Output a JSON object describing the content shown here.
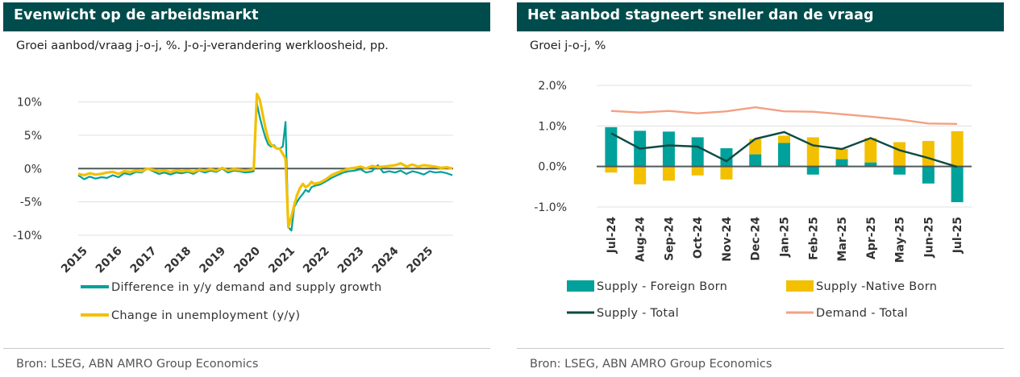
{
  "left": {
    "title": "Evenwicht op de arbeidsmarkt",
    "subtitle": "Groei aanbod/vraag j-o-j, %. J-o-j-verandering werkloosheid, pp.",
    "source": "Bron: LSEG, ABN AMRO Group Economics"
  },
  "right": {
    "title": "Het aanbod stagneert sneller dan de vraag",
    "subtitle": "Groei j-o-j, %",
    "source": "Bron: LSEG, ABN AMRO Group Economics"
  },
  "chart_data": [
    {
      "type": "line",
      "title": "Evenwicht op de arbeidsmarkt",
      "ylim": [
        -10,
        12
      ],
      "yticks": [
        10,
        5,
        0,
        -5,
        -10
      ],
      "ytick_labels": [
        "10%",
        "5%",
        "0%",
        "-5%",
        "-10%"
      ],
      "xlim": [
        2015,
        2025.85
      ],
      "xticks": [
        2015,
        2016,
        2017,
        2018,
        2019,
        2020,
        2021,
        2022,
        2023,
        2024,
        2025
      ],
      "xtick_labels": [
        "2015",
        "2016",
        "2017",
        "2018",
        "2019",
        "2020",
        "2021",
        "2022",
        "2023",
        "2024",
        "2025"
      ],
      "grid": true,
      "legend_position": "bottom",
      "colors": {
        "green": "#00a19a",
        "yellow": "#f3c000",
        "zero": "#4d5a5a",
        "grid": "#e0e0e0"
      },
      "series": [
        {
          "name": "Difference in y/y demand and supply growth",
          "color": "#00a19a",
          "x": [
            2015,
            2015.17,
            2015.33,
            2015.5,
            2015.67,
            2015.83,
            2016,
            2016.17,
            2016.33,
            2016.5,
            2016.67,
            2016.83,
            2017,
            2017.17,
            2017.33,
            2017.5,
            2017.67,
            2017.83,
            2018,
            2018.17,
            2018.33,
            2018.5,
            2018.67,
            2018.83,
            2019,
            2019.17,
            2019.33,
            2019.5,
            2019.67,
            2019.83,
            2020,
            2020.08,
            2020.17,
            2020.25,
            2020.33,
            2020.42,
            2020.5,
            2020.58,
            2020.67,
            2020.75,
            2020.83,
            2020.92,
            2021,
            2021.08,
            2021.17,
            2021.25,
            2021.33,
            2021.42,
            2021.5,
            2021.58,
            2021.67,
            2021.75,
            2021.83,
            2022,
            2022.17,
            2022.33,
            2022.5,
            2022.67,
            2022.83,
            2023,
            2023.17,
            2023.33,
            2023.5,
            2023.67,
            2023.83,
            2024,
            2024.17,
            2024.33,
            2024.5,
            2024.67,
            2024.83,
            2025,
            2025.17,
            2025.33,
            2025.5,
            2025.67,
            2025.83
          ],
          "values": [
            -1.0,
            -1.6,
            -1.2,
            -1.5,
            -1.3,
            -1.4,
            -1.0,
            -1.3,
            -0.7,
            -0.9,
            -0.5,
            -0.6,
            0.0,
            -0.4,
            -0.8,
            -0.6,
            -0.9,
            -0.6,
            -0.7,
            -0.5,
            -0.8,
            -0.3,
            -0.6,
            -0.3,
            -0.5,
            0.0,
            -0.6,
            -0.3,
            -0.4,
            -0.6,
            -0.5,
            -0.4,
            9.8,
            7.8,
            6.2,
            4.6,
            3.6,
            3.3,
            3.5,
            3.0,
            3.0,
            3.3,
            7.0,
            -8.8,
            -9.3,
            -5.8,
            -5.0,
            -4.3,
            -3.8,
            -3.2,
            -3.5,
            -2.8,
            -2.6,
            -2.4,
            -1.9,
            -1.4,
            -1.0,
            -0.6,
            -0.4,
            -0.3,
            -0.1,
            -0.6,
            -0.4,
            0.5,
            -0.6,
            -0.4,
            -0.6,
            -0.3,
            -0.8,
            -0.4,
            -0.6,
            -0.9,
            -0.4,
            -0.6,
            -0.5,
            -0.7,
            -1.0
          ]
        },
        {
          "name": "Change in unemployment (y/y)",
          "color": "#f3c000",
          "x": [
            2015,
            2015.17,
            2015.33,
            2015.5,
            2015.67,
            2015.83,
            2016,
            2016.17,
            2016.33,
            2016.5,
            2016.67,
            2016.83,
            2017,
            2017.17,
            2017.33,
            2017.5,
            2017.67,
            2017.83,
            2018,
            2018.17,
            2018.33,
            2018.5,
            2018.67,
            2018.83,
            2019,
            2019.17,
            2019.33,
            2019.5,
            2019.67,
            2019.83,
            2020,
            2020.08,
            2020.17,
            2020.25,
            2020.33,
            2020.42,
            2020.5,
            2020.58,
            2020.67,
            2020.75,
            2020.83,
            2020.92,
            2021,
            2021.08,
            2021.17,
            2021.25,
            2021.33,
            2021.42,
            2021.5,
            2021.58,
            2021.67,
            2021.75,
            2021.83,
            2022,
            2022.17,
            2022.33,
            2022.5,
            2022.67,
            2022.83,
            2023,
            2023.17,
            2023.33,
            2023.5,
            2023.67,
            2023.83,
            2024,
            2024.17,
            2024.33,
            2024.5,
            2024.67,
            2024.83,
            2025,
            2025.17,
            2025.33,
            2025.5,
            2025.67,
            2025.83
          ],
          "values": [
            -0.8,
            -1.0,
            -0.7,
            -0.9,
            -0.8,
            -0.6,
            -0.5,
            -0.8,
            -0.4,
            -0.5,
            -0.3,
            -0.4,
            0.0,
            -0.2,
            -0.4,
            -0.3,
            -0.5,
            -0.3,
            -0.4,
            -0.3,
            -0.5,
            -0.2,
            -0.3,
            -0.1,
            -0.3,
            0.1,
            -0.3,
            -0.1,
            -0.2,
            -0.3,
            -0.2,
            -0.1,
            11.2,
            10.4,
            8.4,
            6.0,
            4.4,
            3.6,
            3.3,
            3.0,
            3.0,
            2.2,
            1.5,
            -8.8,
            -7.2,
            -5.5,
            -4.0,
            -2.9,
            -2.3,
            -2.8,
            -2.5,
            -2.0,
            -2.3,
            -2.1,
            -1.6,
            -1.0,
            -0.6,
            -0.3,
            0.0,
            0.1,
            0.3,
            0.0,
            0.4,
            0.2,
            0.3,
            0.4,
            0.5,
            0.8,
            0.3,
            0.6,
            0.3,
            0.5,
            0.4,
            0.3,
            0.1,
            0.2,
            0.0
          ]
        }
      ]
    },
    {
      "type": "bar",
      "title": "Het aanbod stagneert sneller dan de vraag",
      "categories": [
        "Jul-24",
        "Aug-24",
        "Sep-24",
        "Oct-24",
        "Nov-24",
        "Dec-24",
        "Jan-25",
        "Feb-25",
        "Mar-25",
        "Apr-25",
        "May-25",
        "Jun-25",
        "Jul-25"
      ],
      "ylim": [
        -1.0,
        2.0
      ],
      "yticks": [
        2.0,
        1.0,
        0.0,
        -1.0
      ],
      "ytick_labels": [
        "2.0%",
        "1.0%",
        "0.0%",
        "-1.0%"
      ],
      "grid": true,
      "legend_position": "bottom",
      "colors": {
        "green": "#00a19a",
        "yellow": "#f3c000",
        "dark": "#0d4a42",
        "salmon": "#f3a084"
      },
      "series": [
        {
          "name": "Supply - Foreign Born",
          "kind": "bar",
          "color": "#00a19a",
          "values": [
            0.97,
            0.88,
            0.86,
            0.72,
            0.45,
            0.3,
            0.58,
            -0.2,
            0.18,
            0.1,
            -0.2,
            -0.42,
            -0.88
          ]
        },
        {
          "name": "Supply -Native Born",
          "kind": "bar",
          "color": "#f3c000",
          "values": [
            -0.15,
            -0.44,
            -0.35,
            -0.22,
            -0.32,
            0.38,
            0.18,
            0.72,
            0.25,
            0.6,
            0.6,
            0.63,
            0.87
          ]
        },
        {
          "name": "Supply - Total",
          "kind": "line",
          "color": "#0d4a42",
          "values": [
            0.82,
            0.44,
            0.52,
            0.49,
            0.13,
            0.68,
            0.85,
            0.52,
            0.43,
            0.7,
            0.4,
            0.21,
            -0.01
          ]
        },
        {
          "name": "Demand - Total",
          "kind": "line",
          "color": "#f3a084",
          "values": [
            1.37,
            1.33,
            1.37,
            1.31,
            1.36,
            1.46,
            1.36,
            1.35,
            1.29,
            1.23,
            1.16,
            1.06,
            1.05
          ]
        }
      ]
    }
  ]
}
